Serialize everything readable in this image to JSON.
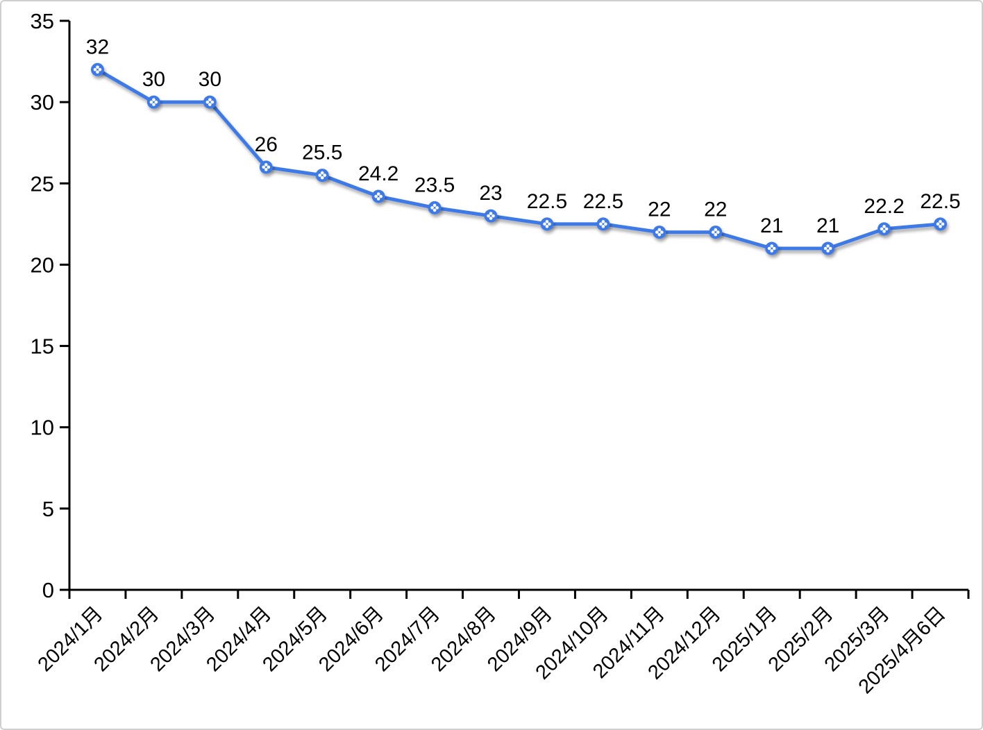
{
  "chart_data": {
    "type": "line",
    "title": "",
    "categories": [
      "2024/1月",
      "2024/2月",
      "2024/3月",
      "2024/4月",
      "2024/5月",
      "2024/6月",
      "2024/7月",
      "2024/8月",
      "2024/9月",
      "2024/10月",
      "2024/11月",
      "2024/12月",
      "2025/1月",
      "2025/2月",
      "2025/3月",
      "2025/4月6日"
    ],
    "series": [
      {
        "name": "series-1",
        "values": [
          32,
          30,
          30,
          26,
          25.5,
          24.2,
          23.5,
          23,
          22.5,
          22.5,
          22,
          22,
          21,
          21,
          22.2,
          22.5
        ]
      }
    ],
    "point_labels": [
      "32",
      "30",
      "30",
      "26",
      "25.5",
      "24.2",
      "23.5",
      "23",
      "22.5",
      "22.5",
      "22",
      "22",
      "21",
      "21",
      "22.2",
      "22.5"
    ],
    "yticks": [
      0,
      5,
      10,
      15,
      20,
      25,
      30,
      35
    ],
    "y_tick_labels": [
      "0",
      "5",
      "10",
      "15",
      "20",
      "25",
      "30",
      "35"
    ],
    "ylim": [
      0,
      35
    ],
    "xlabel": "",
    "ylabel": "",
    "grid": false,
    "legend_position": "none",
    "x_label_rotation_deg": -45,
    "colors": {
      "line": "#3c7ae8",
      "marker_fill": "#3c7ae8",
      "marker_pattern": "#ffffff",
      "axis": "#000000",
      "label_text": "#000000",
      "page_border": "#cfcfcf",
      "background": "#ffffff"
    }
  }
}
